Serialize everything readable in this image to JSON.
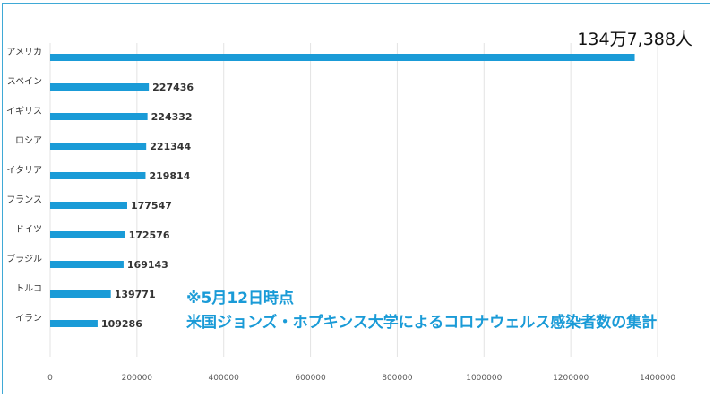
{
  "chart_data": {
    "type": "bar",
    "orientation": "horizontal",
    "categories": [
      "アメリカ",
      "スペイン",
      "イギリス",
      "ロシア",
      "イタリア",
      "フランス",
      "ドイツ",
      "ブラジル",
      "トルコ",
      "イラン"
    ],
    "values": [
      1347388,
      227436,
      224332,
      221344,
      219814,
      177547,
      172576,
      169143,
      139771,
      109286
    ],
    "data_labels": [
      "134万7,388人",
      "227436",
      "224332",
      "221344",
      "219814",
      "177547",
      "172576",
      "169143",
      "139771",
      "109286"
    ],
    "x_ticks": [
      "0",
      "200000",
      "400000",
      "600000",
      "800000",
      "1000000",
      "1200000",
      "1400000"
    ],
    "xlim": [
      0,
      1400000
    ],
    "grid": true,
    "legend": "none",
    "bar_color": "#1a9bd7",
    "annotation": {
      "line1": "※5月12日時点",
      "line2": "米国ジョンズ・ホプキンス大学によるコロナウェルス感染者数の集計"
    }
  }
}
